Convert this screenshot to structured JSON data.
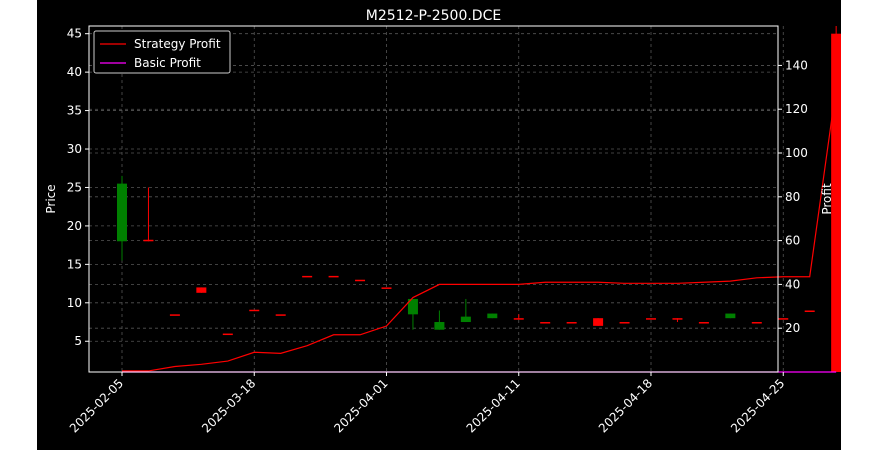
{
  "chart_data": {
    "type": "candlestick",
    "title": "M2512-P-2500.DCE",
    "ylabel_left": "Price",
    "ylabel_right": "Profit",
    "ylim_left": [
      1,
      46
    ],
    "ylim_right": [
      0,
      158
    ],
    "yticks_left": [
      5,
      10,
      15,
      20,
      25,
      30,
      35,
      40,
      45
    ],
    "yticks_right": [
      20,
      40,
      60,
      80,
      100,
      120,
      140
    ],
    "x_tick_labels": [
      "2025-02-05",
      "2025-03-18",
      "2025-04-01",
      "2025-04-11",
      "2025-04-18",
      "2025-04-25"
    ],
    "x_tick_index": [
      0,
      5,
      10,
      15,
      20,
      25
    ],
    "grid": true,
    "legend_placement": "top-left",
    "legend": [
      {
        "name": "Strategy Profit",
        "color": "#ff0000"
      },
      {
        "name": "Basic Profit",
        "color": "#ff00ff"
      }
    ],
    "colors": {
      "up": "#008000",
      "down": "#ff0000",
      "background": "#000000",
      "text": "#ffffff"
    },
    "candles": [
      {
        "i": 0,
        "open": 18,
        "close": 25.5,
        "high": 26.5,
        "low": 15.5
      },
      {
        "i": 1,
        "open": 18.2,
        "close": 18,
        "high": 25,
        "low": 18
      },
      {
        "i": 2,
        "open": 8.5,
        "close": 8.5,
        "high": 8.5,
        "low": 8.5
      },
      {
        "i": 3,
        "open": 12,
        "close": 11.3,
        "high": 12,
        "low": 11.3
      },
      {
        "i": 4,
        "open": 6,
        "close": 6,
        "high": 6,
        "low": 6
      },
      {
        "i": 5,
        "open": 9.1,
        "close": 9.1,
        "high": 9.1,
        "low": 9.1
      },
      {
        "i": 6,
        "open": 8.5,
        "close": 8.5,
        "high": 8.5,
        "low": 8.5
      },
      {
        "i": 7,
        "open": 13.5,
        "close": 13.5,
        "high": 13.5,
        "low": 13.5
      },
      {
        "i": 8,
        "open": 13.5,
        "close": 13.5,
        "high": 13.5,
        "low": 13.5
      },
      {
        "i": 9,
        "open": 13,
        "close": 13,
        "high": 13,
        "low": 13
      },
      {
        "i": 10,
        "open": 12,
        "close": 12,
        "high": 12,
        "low": 12
      },
      {
        "i": 11,
        "open": 8.5,
        "close": 10.5,
        "high": 10.5,
        "low": 6.5
      },
      {
        "i": 12,
        "open": 6.5,
        "close": 7.5,
        "high": 9,
        "low": 6.5
      },
      {
        "i": 13,
        "open": 7.5,
        "close": 8.2,
        "high": 10.5,
        "low": 7.5
      },
      {
        "i": 14,
        "open": 8,
        "close": 8.6,
        "high": 8.6,
        "low": 8
      },
      {
        "i": 15,
        "open": 8,
        "close": 8,
        "high": 8.5,
        "low": 7.8
      },
      {
        "i": 16,
        "open": 7.5,
        "close": 7.5,
        "high": 7.5,
        "low": 7.5
      },
      {
        "i": 17,
        "open": 7.5,
        "close": 7.5,
        "high": 7.5,
        "low": 7.5
      },
      {
        "i": 18,
        "open": 8,
        "close": 7,
        "high": 8,
        "low": 7
      },
      {
        "i": 19,
        "open": 7.5,
        "close": 7.5,
        "high": 7.5,
        "low": 7.5
      },
      {
        "i": 20,
        "open": 8,
        "close": 8,
        "high": 8,
        "low": 8
      },
      {
        "i": 21,
        "open": 8,
        "close": 8,
        "high": 8,
        "low": 7.5
      },
      {
        "i": 22,
        "open": 7.5,
        "close": 7.5,
        "high": 7.5,
        "low": 7.5
      },
      {
        "i": 23,
        "open": 8,
        "close": 8.6,
        "high": 8.6,
        "low": 8
      },
      {
        "i": 24,
        "open": 7.5,
        "close": 7.5,
        "high": 7.5,
        "low": 7.5
      },
      {
        "i": 25,
        "open": 8,
        "close": 8,
        "high": 8,
        "low": 8
      },
      {
        "i": 26,
        "open": 9,
        "close": 9,
        "high": 9,
        "low": 9
      },
      {
        "i": 27,
        "open": 45,
        "close": 1,
        "high": 46,
        "low": 1
      }
    ],
    "series": [
      {
        "name": "Strategy Profit",
        "axis": "right",
        "color": "#ff0000",
        "values": [
          0.5,
          0.5,
          2.5,
          3.5,
          5,
          9,
          8.5,
          12,
          17,
          17,
          21,
          34,
          40,
          40,
          40,
          40,
          41,
          41,
          41,
          40.5,
          40.5,
          40.5,
          41,
          41.5,
          43,
          43.5,
          43.5,
          130
        ]
      },
      {
        "name": "Basic Profit",
        "axis": "right",
        "color": "#ff00ff",
        "values": [
          0,
          0,
          0,
          0,
          0,
          0,
          0,
          0,
          0,
          0,
          0,
          0,
          0,
          0,
          0,
          0,
          0,
          0,
          0,
          0,
          0,
          0,
          0,
          0,
          0,
          0,
          0,
          0
        ]
      }
    ]
  }
}
